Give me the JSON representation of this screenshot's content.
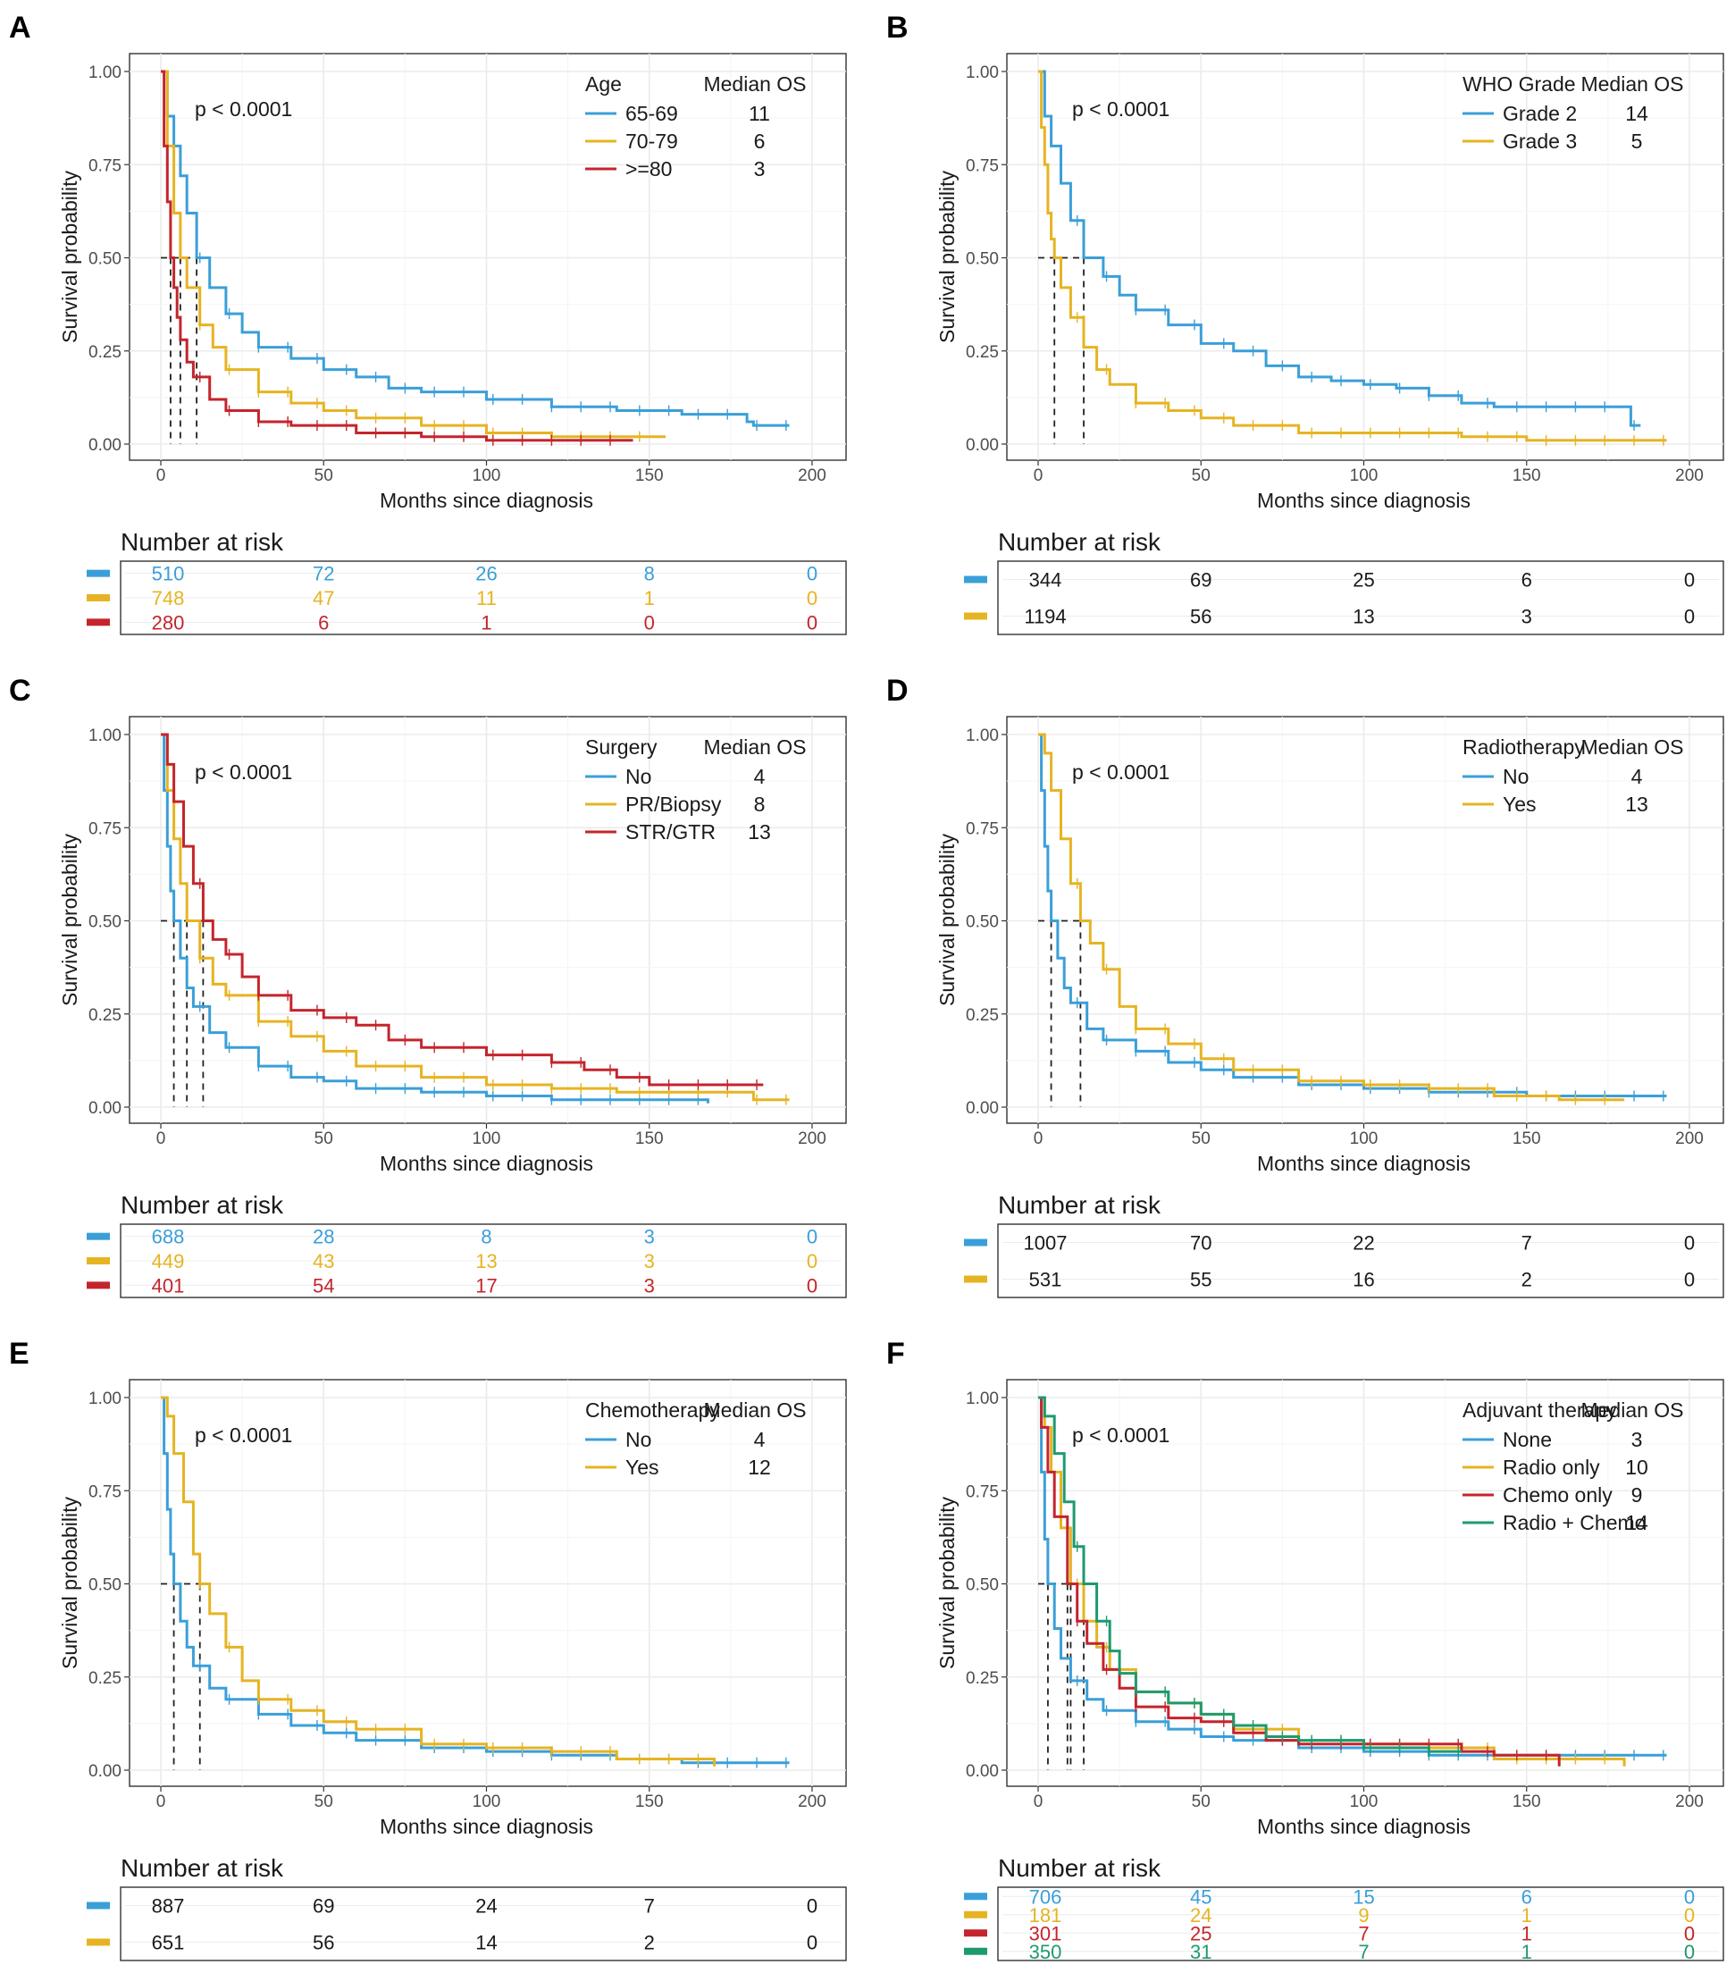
{
  "colors": {
    "blue": "#3a9fd8",
    "gold": "#e6b422",
    "red": "#c4252c",
    "green": "#1e9a6f"
  },
  "common": {
    "ylabel": "Survival probability",
    "xlabel": "Months since diagnosis",
    "risk_title": "Number at risk",
    "legend_value_header": "Median OS"
  },
  "chart_data": [
    {
      "panel": "A",
      "type": "line",
      "pvalue": "p < 0.0001",
      "legend_title": "Age",
      "legend_value_header": "Median OS",
      "xlabel": "Months since diagnosis",
      "ylabel": "Survival probability",
      "xlim": [
        0,
        200
      ],
      "ylim": [
        0,
        1
      ],
      "xticks": [
        "0",
        "50",
        "100",
        "150",
        "200"
      ],
      "yticks": [
        "0.00",
        "0.25",
        "0.50",
        "0.75",
        "1.00"
      ],
      "risk_times": [
        0,
        50,
        100,
        150,
        200
      ],
      "series": [
        {
          "name": "65-69",
          "median_os": "11",
          "color": "#3a9fd8",
          "x": [
            0,
            2,
            4,
            6,
            8,
            11,
            15,
            20,
            25,
            30,
            40,
            50,
            60,
            70,
            80,
            100,
            120,
            140,
            160,
            180,
            182,
            193
          ],
          "y": [
            1,
            0.88,
            0.8,
            0.72,
            0.62,
            0.5,
            0.42,
            0.35,
            0.3,
            0.26,
            0.23,
            0.2,
            0.18,
            0.15,
            0.14,
            0.12,
            0.1,
            0.09,
            0.08,
            0.06,
            0.05,
            0.05
          ],
          "risk": [
            "510",
            "72",
            "26",
            "8",
            "0"
          ]
        },
        {
          "name": "70-79",
          "median_os": "6",
          "color": "#e6b422",
          "x": [
            0,
            2,
            4,
            6,
            8,
            12,
            16,
            20,
            30,
            40,
            50,
            60,
            80,
            100,
            120,
            140,
            155
          ],
          "y": [
            1,
            0.8,
            0.62,
            0.5,
            0.42,
            0.32,
            0.26,
            0.2,
            0.14,
            0.11,
            0.09,
            0.07,
            0.05,
            0.03,
            0.02,
            0.02,
            0.02
          ],
          "risk": [
            "748",
            "47",
            "11",
            "1",
            "0"
          ]
        },
        {
          "name": ">=80",
          "median_os": "3",
          "color": "#c4252c",
          "x": [
            0,
            1,
            2,
            3,
            4,
            5,
            6,
            8,
            10,
            15,
            20,
            30,
            40,
            60,
            80,
            100,
            145
          ],
          "y": [
            1,
            0.8,
            0.65,
            0.5,
            0.42,
            0.34,
            0.28,
            0.22,
            0.18,
            0.12,
            0.09,
            0.06,
            0.05,
            0.03,
            0.02,
            0.01,
            0.01
          ],
          "risk": [
            "280",
            "6",
            "1",
            "0",
            "0"
          ]
        }
      ]
    },
    {
      "panel": "B",
      "type": "line",
      "pvalue": "p < 0.0001",
      "legend_title": "WHO Grade",
      "legend_value_header": "Median OS",
      "xlabel": "Months since diagnosis",
      "ylabel": "Survival probability",
      "xlim": [
        0,
        200
      ],
      "ylim": [
        0,
        1
      ],
      "xticks": [
        "0",
        "50",
        "100",
        "150",
        "200"
      ],
      "yticks": [
        "0.00",
        "0.25",
        "0.50",
        "0.75",
        "1.00"
      ],
      "risk_times": [
        0,
        50,
        100,
        150,
        200
      ],
      "series": [
        {
          "name": "Grade 2",
          "median_os": "14",
          "color": "#3a9fd8",
          "x": [
            0,
            2,
            4,
            7,
            10,
            14,
            20,
            25,
            30,
            40,
            50,
            60,
            70,
            80,
            90,
            100,
            110,
            120,
            130,
            140,
            150,
            160,
            170,
            180,
            182,
            185
          ],
          "y": [
            1,
            0.88,
            0.8,
            0.7,
            0.6,
            0.5,
            0.45,
            0.4,
            0.36,
            0.32,
            0.27,
            0.25,
            0.21,
            0.18,
            0.17,
            0.16,
            0.15,
            0.13,
            0.11,
            0.1,
            0.1,
            0.1,
            0.1,
            0.1,
            0.05,
            0.05
          ],
          "risk": [
            "344",
            "69",
            "25",
            "6",
            "0"
          ]
        },
        {
          "name": "Grade 3",
          "median_os": "5",
          "color": "#e6b422",
          "x": [
            0,
            1,
            2,
            3,
            4,
            5,
            7,
            10,
            14,
            18,
            22,
            30,
            40,
            50,
            60,
            80,
            100,
            130,
            150,
            193
          ],
          "y": [
            1,
            0.85,
            0.75,
            0.62,
            0.55,
            0.5,
            0.42,
            0.34,
            0.26,
            0.2,
            0.16,
            0.11,
            0.09,
            0.07,
            0.05,
            0.03,
            0.03,
            0.02,
            0.01,
            0.01
          ],
          "risk": [
            "1194",
            "56",
            "13",
            "3",
            "0"
          ]
        }
      ]
    },
    {
      "panel": "C",
      "type": "line",
      "pvalue": "p < 0.0001",
      "legend_title": "Surgery",
      "legend_value_header": "Median OS",
      "xlabel": "Months since diagnosis",
      "ylabel": "Survival probability",
      "xlim": [
        0,
        200
      ],
      "ylim": [
        0,
        1
      ],
      "xticks": [
        "0",
        "50",
        "100",
        "150",
        "200"
      ],
      "yticks": [
        "0.00",
        "0.25",
        "0.50",
        "0.75",
        "1.00"
      ],
      "risk_times": [
        0,
        50,
        100,
        150,
        200
      ],
      "series": [
        {
          "name": "No",
          "median_os": "4",
          "color": "#3a9fd8",
          "x": [
            0,
            1,
            2,
            3,
            4,
            6,
            8,
            10,
            15,
            20,
            30,
            40,
            50,
            60,
            80,
            100,
            120,
            140,
            168
          ],
          "y": [
            1,
            0.85,
            0.7,
            0.58,
            0.5,
            0.4,
            0.32,
            0.27,
            0.2,
            0.16,
            0.11,
            0.08,
            0.07,
            0.05,
            0.04,
            0.03,
            0.02,
            0.02,
            0.01
          ],
          "risk": [
            "688",
            "28",
            "8",
            "3",
            "0"
          ]
        },
        {
          "name": "PR/Biopsy",
          "median_os": "8",
          "color": "#e6b422",
          "x": [
            0,
            2,
            4,
            6,
            8,
            12,
            16,
            20,
            30,
            40,
            50,
            60,
            80,
            100,
            120,
            140,
            180,
            182,
            193
          ],
          "y": [
            1,
            0.85,
            0.72,
            0.6,
            0.5,
            0.4,
            0.33,
            0.3,
            0.23,
            0.19,
            0.15,
            0.11,
            0.08,
            0.06,
            0.05,
            0.04,
            0.04,
            0.02,
            0.02
          ],
          "risk": [
            "449",
            "43",
            "13",
            "3",
            "0"
          ]
        },
        {
          "name": "STR/GTR",
          "median_os": "13",
          "color": "#c4252c",
          "x": [
            0,
            2,
            4,
            7,
            10,
            13,
            16,
            20,
            25,
            30,
            40,
            50,
            60,
            70,
            80,
            100,
            120,
            130,
            140,
            150,
            185
          ],
          "y": [
            1,
            0.92,
            0.82,
            0.7,
            0.6,
            0.5,
            0.45,
            0.41,
            0.35,
            0.3,
            0.26,
            0.24,
            0.22,
            0.18,
            0.16,
            0.14,
            0.12,
            0.1,
            0.08,
            0.06,
            0.06
          ],
          "risk": [
            "401",
            "54",
            "17",
            "3",
            "0"
          ]
        }
      ]
    },
    {
      "panel": "D",
      "type": "line",
      "pvalue": "p < 0.0001",
      "legend_title": "Radiotherapy",
      "legend_value_header": "Median OS",
      "xlabel": "Months since diagnosis",
      "ylabel": "Survival probability",
      "xlim": [
        0,
        200
      ],
      "ylim": [
        0,
        1
      ],
      "xticks": [
        "0",
        "50",
        "100",
        "150",
        "200"
      ],
      "yticks": [
        "0.00",
        "0.25",
        "0.50",
        "0.75",
        "1.00"
      ],
      "risk_times": [
        0,
        50,
        100,
        150,
        200
      ],
      "series": [
        {
          "name": "No",
          "median_os": "4",
          "color": "#3a9fd8",
          "x": [
            0,
            1,
            2,
            3,
            4,
            6,
            8,
            10,
            15,
            20,
            30,
            40,
            50,
            60,
            80,
            100,
            120,
            150,
            193
          ],
          "y": [
            1,
            0.85,
            0.7,
            0.58,
            0.5,
            0.4,
            0.32,
            0.28,
            0.21,
            0.18,
            0.15,
            0.12,
            0.1,
            0.08,
            0.06,
            0.05,
            0.04,
            0.03,
            0.03
          ],
          "risk": [
            "1007",
            "70",
            "22",
            "7",
            "0"
          ]
        },
        {
          "name": "Yes",
          "median_os": "13",
          "color": "#e6b422",
          "x": [
            0,
            2,
            4,
            7,
            10,
            13,
            16,
            20,
            25,
            30,
            40,
            50,
            60,
            80,
            100,
            120,
            140,
            160,
            180
          ],
          "y": [
            1,
            0.95,
            0.85,
            0.72,
            0.6,
            0.5,
            0.44,
            0.37,
            0.27,
            0.21,
            0.17,
            0.13,
            0.1,
            0.07,
            0.06,
            0.05,
            0.03,
            0.02,
            0.02
          ],
          "risk": [
            "531",
            "55",
            "16",
            "2",
            "0"
          ]
        }
      ]
    },
    {
      "panel": "E",
      "type": "line",
      "pvalue": "p < 0.0001",
      "legend_title": "Chemotherapy",
      "legend_value_header": "Median OS",
      "xlabel": "Months since diagnosis",
      "ylabel": "Survival probability",
      "xlim": [
        0,
        200
      ],
      "ylim": [
        0,
        1
      ],
      "xticks": [
        "0",
        "50",
        "100",
        "150",
        "200"
      ],
      "yticks": [
        "0.00",
        "0.25",
        "0.50",
        "0.75",
        "1.00"
      ],
      "risk_times": [
        0,
        50,
        100,
        150,
        200
      ],
      "series": [
        {
          "name": "No",
          "median_os": "4",
          "color": "#3a9fd8",
          "x": [
            0,
            1,
            2,
            3,
            4,
            6,
            8,
            10,
            15,
            20,
            30,
            40,
            50,
            60,
            80,
            100,
            120,
            140,
            160,
            193
          ],
          "y": [
            1,
            0.85,
            0.7,
            0.58,
            0.5,
            0.4,
            0.33,
            0.28,
            0.22,
            0.19,
            0.15,
            0.12,
            0.1,
            0.08,
            0.06,
            0.05,
            0.04,
            0.03,
            0.02,
            0.02
          ],
          "risk": [
            "887",
            "69",
            "24",
            "7",
            "0"
          ]
        },
        {
          "name": "Yes",
          "median_os": "12",
          "color": "#e6b422",
          "x": [
            0,
            2,
            4,
            7,
            10,
            12,
            15,
            20,
            25,
            30,
            40,
            50,
            60,
            80,
            100,
            120,
            130,
            140,
            150,
            170
          ],
          "y": [
            1,
            0.95,
            0.85,
            0.72,
            0.58,
            0.5,
            0.42,
            0.33,
            0.24,
            0.19,
            0.16,
            0.13,
            0.11,
            0.07,
            0.06,
            0.05,
            0.05,
            0.03,
            0.03,
            0.01
          ],
          "risk": [
            "651",
            "56",
            "14",
            "2",
            "0"
          ]
        }
      ]
    },
    {
      "panel": "F",
      "type": "line",
      "pvalue": "p < 0.0001",
      "legend_title": "Adjuvant therapy",
      "legend_value_header": "Median OS",
      "xlabel": "Months since diagnosis",
      "ylabel": "Survival probability",
      "xlim": [
        0,
        200
      ],
      "ylim": [
        0,
        1
      ],
      "xticks": [
        "0",
        "50",
        "100",
        "150",
        "200"
      ],
      "yticks": [
        "0.00",
        "0.25",
        "0.50",
        "0.75",
        "1.00"
      ],
      "risk_times": [
        0,
        50,
        100,
        150,
        200
      ],
      "series": [
        {
          "name": "None",
          "median_os": "3",
          "color": "#3a9fd8",
          "x": [
            0,
            1,
            2,
            3,
            5,
            7,
            10,
            15,
            20,
            30,
            40,
            50,
            60,
            80,
            100,
            120,
            150,
            193
          ],
          "y": [
            1,
            0.8,
            0.62,
            0.5,
            0.38,
            0.3,
            0.24,
            0.19,
            0.16,
            0.13,
            0.11,
            0.09,
            0.08,
            0.06,
            0.05,
            0.04,
            0.04,
            0.04
          ],
          "risk": [
            "706",
            "45",
            "15",
            "6",
            "0"
          ]
        },
        {
          "name": "Radio only",
          "median_os": "10",
          "color": "#e6b422",
          "x": [
            0,
            2,
            4,
            7,
            10,
            14,
            18,
            22,
            30,
            40,
            50,
            60,
            80,
            100,
            120,
            140,
            180
          ],
          "y": [
            1,
            0.92,
            0.8,
            0.65,
            0.5,
            0.4,
            0.33,
            0.27,
            0.21,
            0.18,
            0.15,
            0.11,
            0.08,
            0.07,
            0.06,
            0.03,
            0.01
          ],
          "risk": [
            "181",
            "24",
            "9",
            "1",
            "0"
          ]
        },
        {
          "name": "Chemo only",
          "median_os": "9",
          "color": "#c4252c",
          "x": [
            0,
            1,
            3,
            5,
            9,
            12,
            15,
            20,
            25,
            30,
            40,
            50,
            60,
            70,
            80,
            100,
            130,
            140,
            160
          ],
          "y": [
            1,
            0.92,
            0.8,
            0.68,
            0.5,
            0.4,
            0.34,
            0.27,
            0.22,
            0.17,
            0.14,
            0.13,
            0.1,
            0.08,
            0.07,
            0.07,
            0.05,
            0.04,
            0.01
          ],
          "risk": [
            "301",
            "25",
            "7",
            "1",
            "0"
          ]
        },
        {
          "name": "Radio + Chemo",
          "median_os": "14",
          "color": "#1e9a6f",
          "x": [
            0,
            2,
            5,
            8,
            11,
            14,
            18,
            22,
            25,
            30,
            40,
            50,
            60,
            70,
            80,
            100,
            120,
            130
          ],
          "y": [
            1,
            0.95,
            0.85,
            0.72,
            0.6,
            0.5,
            0.4,
            0.32,
            0.26,
            0.21,
            0.18,
            0.15,
            0.12,
            0.09,
            0.08,
            0.06,
            0.05,
            0.05
          ],
          "risk": [
            "350",
            "31",
            "7",
            "1",
            "0"
          ]
        }
      ]
    }
  ]
}
